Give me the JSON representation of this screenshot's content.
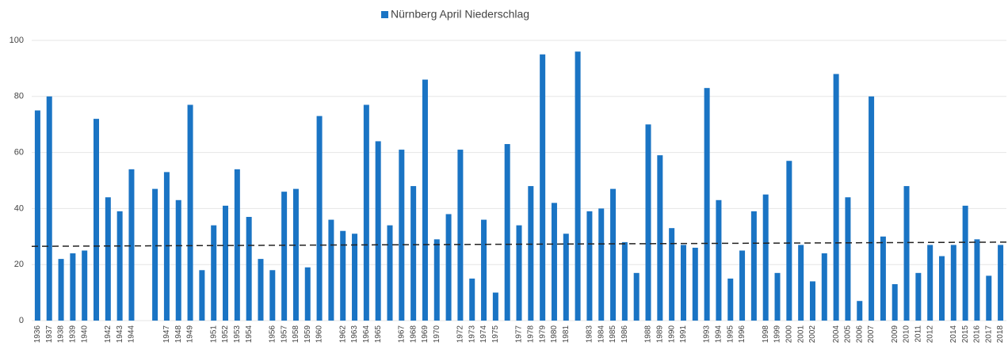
{
  "chart_data": {
    "type": "bar",
    "legend": "Nürnberg April Niederschlag",
    "color": "#1a74c4",
    "categories": [
      "1936",
      "1937",
      "1938",
      "1939",
      "1940",
      null,
      "1942",
      "1943",
      "1944",
      null,
      null,
      "1947",
      "1948",
      "1949",
      null,
      "1951",
      "1952",
      "1953",
      "1954",
      null,
      "1956",
      "1957",
      "1958",
      "1959",
      "1960",
      null,
      "1962",
      "1963",
      "1964",
      "1965",
      null,
      "1967",
      "1968",
      "1969",
      "1970",
      null,
      "1972",
      "1973",
      "1974",
      "1975",
      null,
      "1977",
      "1978",
      "1979",
      "1980",
      "1981",
      null,
      "1983",
      "1984",
      "1985",
      "1986",
      null,
      "1988",
      "1989",
      "1990",
      "1991",
      null,
      "1993",
      "1994",
      "1995",
      "1996",
      null,
      "1998",
      "1999",
      "2000",
      "2001",
      "2002",
      null,
      "2004",
      "2005",
      "2006",
      "2007",
      null,
      "2009",
      "2010",
      "2011",
      "2012",
      null,
      "2014",
      "2015",
      "2016",
      "2017",
      "2018"
    ],
    "values": [
      75,
      80,
      22,
      24,
      25,
      72,
      44,
      39,
      54,
      null,
      47,
      53,
      43,
      77,
      18,
      34,
      41,
      54,
      37,
      22,
      18,
      46,
      47,
      19,
      73,
      36,
      32,
      31,
      77,
      64,
      34,
      61,
      48,
      86,
      29,
      38,
      61,
      15,
      36,
      10,
      63,
      34,
      48,
      95,
      42,
      31,
      96,
      39,
      40,
      47,
      28,
      17,
      70,
      59,
      33,
      27,
      26,
      83,
      43,
      15,
      25,
      39,
      45,
      17,
      57,
      27,
      14,
      24,
      88,
      44,
      7,
      80,
      30,
      13,
      48,
      17,
      27,
      23,
      27,
      41,
      29,
      16,
      27
    ],
    "trend": {
      "values": [
        26.5,
        28
      ],
      "color": "#222222"
    },
    "ylim": [
      0,
      100
    ],
    "yticks": [
      0,
      20,
      40,
      60,
      80,
      100
    ],
    "grid": true
  }
}
